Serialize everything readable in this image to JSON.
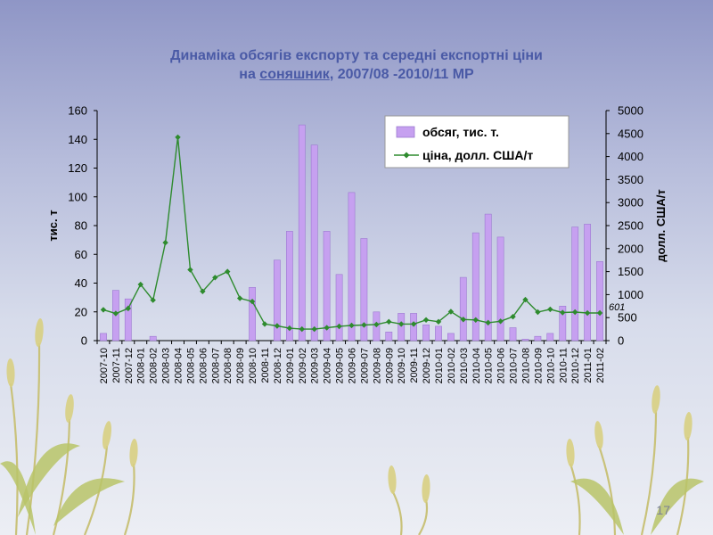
{
  "slide": {
    "title_line1": "Динаміка обсягів експорту та середні експортні ціни",
    "title_line2_prefix": "на ",
    "title_line2_link": "соняшник",
    "title_line2_suffix": ", 2007/08 -2010/11 МР",
    "page_number": "17"
  },
  "chart_data": {
    "type": "bar",
    "categories": [
      "2007-10",
      "2007-11",
      "2007-12",
      "2008-01",
      "2008-02",
      "2008-03",
      "2008-04",
      "2008-05",
      "2008-06",
      "2008-07",
      "2008-08",
      "2008-09",
      "2008-10",
      "2008-11",
      "2008-12",
      "2009-01",
      "2009-02",
      "2009-03",
      "2009-04",
      "2009-05",
      "2009-06",
      "2009-07",
      "2009-08",
      "2009-09",
      "2009-10",
      "2009-11",
      "2009-12",
      "2010-01",
      "2010-02",
      "2010-03",
      "2010-04",
      "2010-05",
      "2010-06",
      "2010-07",
      "2010-08",
      "2010-09",
      "2010-10",
      "2010-11",
      "2010-12",
      "2011-01",
      "2011-02"
    ],
    "series": [
      {
        "name": "обсяг, тис. т.",
        "type": "bar",
        "axis": "left",
        "color": "#c6a0f0",
        "values": [
          5,
          35,
          29,
          0,
          3,
          0,
          0,
          0,
          0,
          0,
          0,
          0,
          37,
          0,
          56,
          76,
          150,
          136,
          76,
          46,
          103,
          71,
          20,
          6,
          19,
          19,
          11,
          10,
          5,
          44,
          75,
          88,
          72,
          9,
          1,
          3,
          5,
          24,
          79,
          81,
          55
        ]
      },
      {
        "name": "ціна, долл. США/т",
        "type": "line",
        "axis": "right",
        "color": "#2e8b2e",
        "values": [
          670,
          590,
          700,
          1220,
          880,
          2130,
          4420,
          1540,
          1070,
          1370,
          1500,
          920,
          850,
          360,
          320,
          270,
          250,
          250,
          280,
          310,
          330,
          340,
          350,
          410,
          360,
          360,
          450,
          410,
          630,
          460,
          450,
          390,
          420,
          520,
          890,
          620,
          680,
          610,
          620,
          600,
          601
        ]
      }
    ],
    "annotation": "601",
    "ylabel_left": "тис. т",
    "ylabel_right": "долл. США/т",
    "ylim_left": [
      0,
      160
    ],
    "ylim_right": [
      0,
      5000
    ],
    "yticks_left": [
      0,
      20,
      40,
      60,
      80,
      100,
      120,
      140,
      160
    ],
    "yticks_right": [
      0,
      500,
      1000,
      1500,
      2000,
      2500,
      3000,
      3500,
      4000,
      4500,
      5000
    ],
    "grid": false,
    "legend_position": "top-right"
  }
}
